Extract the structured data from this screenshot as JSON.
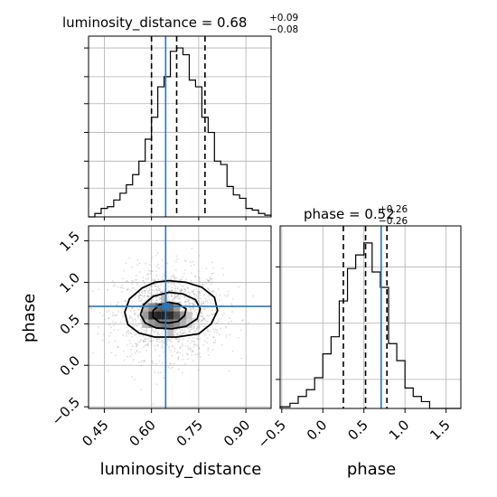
{
  "chart_data": {
    "type": "corner",
    "colors": {
      "truth": "#2f75b5",
      "histogram": "#000000",
      "density": "#000000",
      "samples": "#9a9a9a",
      "grid": "#b0b0b0"
    },
    "parameters": [
      {
        "name": "luminosity_distance",
        "axis_label": "luminosity_distance",
        "title_prefix": "luminosity_distance = ",
        "median_text": "0.68",
        "plus_text": "+0.09",
        "minus_text": "−0.08",
        "median": 0.68,
        "plus": 0.09,
        "minus": 0.08,
        "quantiles": [
          0.6,
          0.68,
          0.77
        ],
        "truth": 0.645,
        "range": [
          0.4,
          0.98
        ],
        "ticks": [
          0.45,
          0.6,
          0.75,
          0.9
        ],
        "tick_labels": [
          "0.45",
          "0.60",
          "0.75",
          "0.90"
        ],
        "hist_bins": [
          0.4,
          0.42,
          0.44,
          0.46,
          0.48,
          0.5,
          0.52,
          0.54,
          0.56,
          0.58,
          0.6,
          0.62,
          0.64,
          0.66,
          0.68,
          0.7,
          0.72,
          0.74,
          0.76,
          0.78,
          0.8,
          0.82,
          0.84,
          0.86,
          0.88,
          0.9,
          0.92,
          0.94,
          0.96,
          0.98
        ],
        "hist_values": [
          0,
          0.02,
          0.05,
          0.06,
          0.1,
          0.14,
          0.19,
          0.25,
          0.33,
          0.46,
          0.59,
          0.77,
          0.83,
          0.98,
          1.0,
          0.96,
          0.81,
          0.77,
          0.59,
          0.5,
          0.33,
          0.31,
          0.18,
          0.13,
          0.11,
          0.05,
          0.04,
          0.02,
          0.01
        ],
        "hist_ymax": 1.07
      },
      {
        "name": "phase",
        "axis_label": "phase",
        "title_prefix": "phase = ",
        "median_text": "0.52",
        "plus_text": "+0.26",
        "minus_text": "−0.26",
        "median": 0.52,
        "plus": 0.26,
        "minus": 0.26,
        "quantiles": [
          0.25,
          0.52,
          0.78
        ],
        "truth": 0.71,
        "range": [
          -0.52,
          1.68
        ],
        "ticks": [
          -0.5,
          0.0,
          0.5,
          1.0,
          1.5
        ],
        "tick_labels": [
          "−0.5",
          "0.0",
          "0.5",
          "1.0",
          "1.5"
        ],
        "hist_bins": [
          -0.52,
          -0.4,
          -0.3,
          -0.2,
          -0.1,
          0.0,
          0.1,
          0.2,
          0.3,
          0.4,
          0.5,
          0.6,
          0.7,
          0.8,
          0.9,
          1.0,
          1.1,
          1.2,
          1.3,
          1.68
        ],
        "hist_values": [
          0.01,
          0.03,
          0.07,
          0.11,
          0.18,
          0.32,
          0.42,
          0.63,
          0.82,
          0.9,
          0.97,
          0.8,
          0.71,
          0.38,
          0.28,
          0.12,
          0.07,
          0.04,
          0.0
        ],
        "hist_ymax": 1.07
      }
    ],
    "density_2d": {
      "x_param": "luminosity_distance",
      "y_param": "phase",
      "center": [
        0.655,
        0.62
      ],
      "contour_levels": [
        [
          [
            0.655,
            1.02
          ],
          [
            0.71,
            1.0
          ],
          [
            0.76,
            0.94
          ],
          [
            0.8,
            0.82
          ],
          [
            0.81,
            0.66
          ],
          [
            0.79,
            0.5
          ],
          [
            0.75,
            0.38
          ],
          [
            0.68,
            0.34
          ],
          [
            0.61,
            0.34
          ],
          [
            0.56,
            0.39
          ],
          [
            0.525,
            0.49
          ],
          [
            0.515,
            0.64
          ],
          [
            0.53,
            0.8
          ],
          [
            0.57,
            0.93
          ],
          [
            0.61,
            1.0
          ]
        ],
        [
          [
            0.655,
            0.88
          ],
          [
            0.7,
            0.86
          ],
          [
            0.74,
            0.79
          ],
          [
            0.755,
            0.68
          ],
          [
            0.745,
            0.56
          ],
          [
            0.71,
            0.47
          ],
          [
            0.665,
            0.44
          ],
          [
            0.615,
            0.45
          ],
          [
            0.58,
            0.51
          ],
          [
            0.565,
            0.61
          ],
          [
            0.575,
            0.73
          ],
          [
            0.605,
            0.83
          ]
        ],
        [
          [
            0.655,
            0.76
          ],
          [
            0.685,
            0.74
          ],
          [
            0.71,
            0.68
          ],
          [
            0.705,
            0.6
          ],
          [
            0.685,
            0.53
          ],
          [
            0.655,
            0.51
          ],
          [
            0.625,
            0.52
          ],
          [
            0.605,
            0.58
          ],
          [
            0.605,
            0.66
          ],
          [
            0.625,
            0.73
          ]
        ]
      ],
      "density_cells": [
        {
          "x": 0.6,
          "y": 0.6,
          "v": 0.9
        },
        {
          "x": 0.62,
          "y": 0.6,
          "v": 1.0
        },
        {
          "x": 0.64,
          "y": 0.6,
          "v": 1.0
        },
        {
          "x": 0.66,
          "y": 0.6,
          "v": 0.95
        },
        {
          "x": 0.68,
          "y": 0.6,
          "v": 0.75
        },
        {
          "x": 0.7,
          "y": 0.6,
          "v": 0.45
        },
        {
          "x": 0.62,
          "y": 0.7,
          "v": 0.7
        },
        {
          "x": 0.64,
          "y": 0.7,
          "v": 0.8
        },
        {
          "x": 0.66,
          "y": 0.7,
          "v": 0.7
        },
        {
          "x": 0.6,
          "y": 0.5,
          "v": 0.45
        },
        {
          "x": 0.62,
          "y": 0.5,
          "v": 0.55
        },
        {
          "x": 0.64,
          "y": 0.5,
          "v": 0.6
        },
        {
          "x": 0.66,
          "y": 0.5,
          "v": 0.6
        },
        {
          "x": 0.68,
          "y": 0.5,
          "v": 0.5
        },
        {
          "x": 0.7,
          "y": 0.5,
          "v": 0.35
        },
        {
          "x": 0.58,
          "y": 0.7,
          "v": 0.35
        },
        {
          "x": 0.6,
          "y": 0.7,
          "v": 0.5
        },
        {
          "x": 0.68,
          "y": 0.7,
          "v": 0.45
        },
        {
          "x": 0.72,
          "y": 0.6,
          "v": 0.25
        },
        {
          "x": 0.72,
          "y": 0.5,
          "v": 0.2
        },
        {
          "x": 0.58,
          "y": 0.6,
          "v": 0.45
        },
        {
          "x": 0.58,
          "y": 0.5,
          "v": 0.3
        },
        {
          "x": 0.64,
          "y": 0.8,
          "v": 0.3
        },
        {
          "x": 0.66,
          "y": 0.4,
          "v": 0.3
        }
      ]
    },
    "grid": true
  }
}
